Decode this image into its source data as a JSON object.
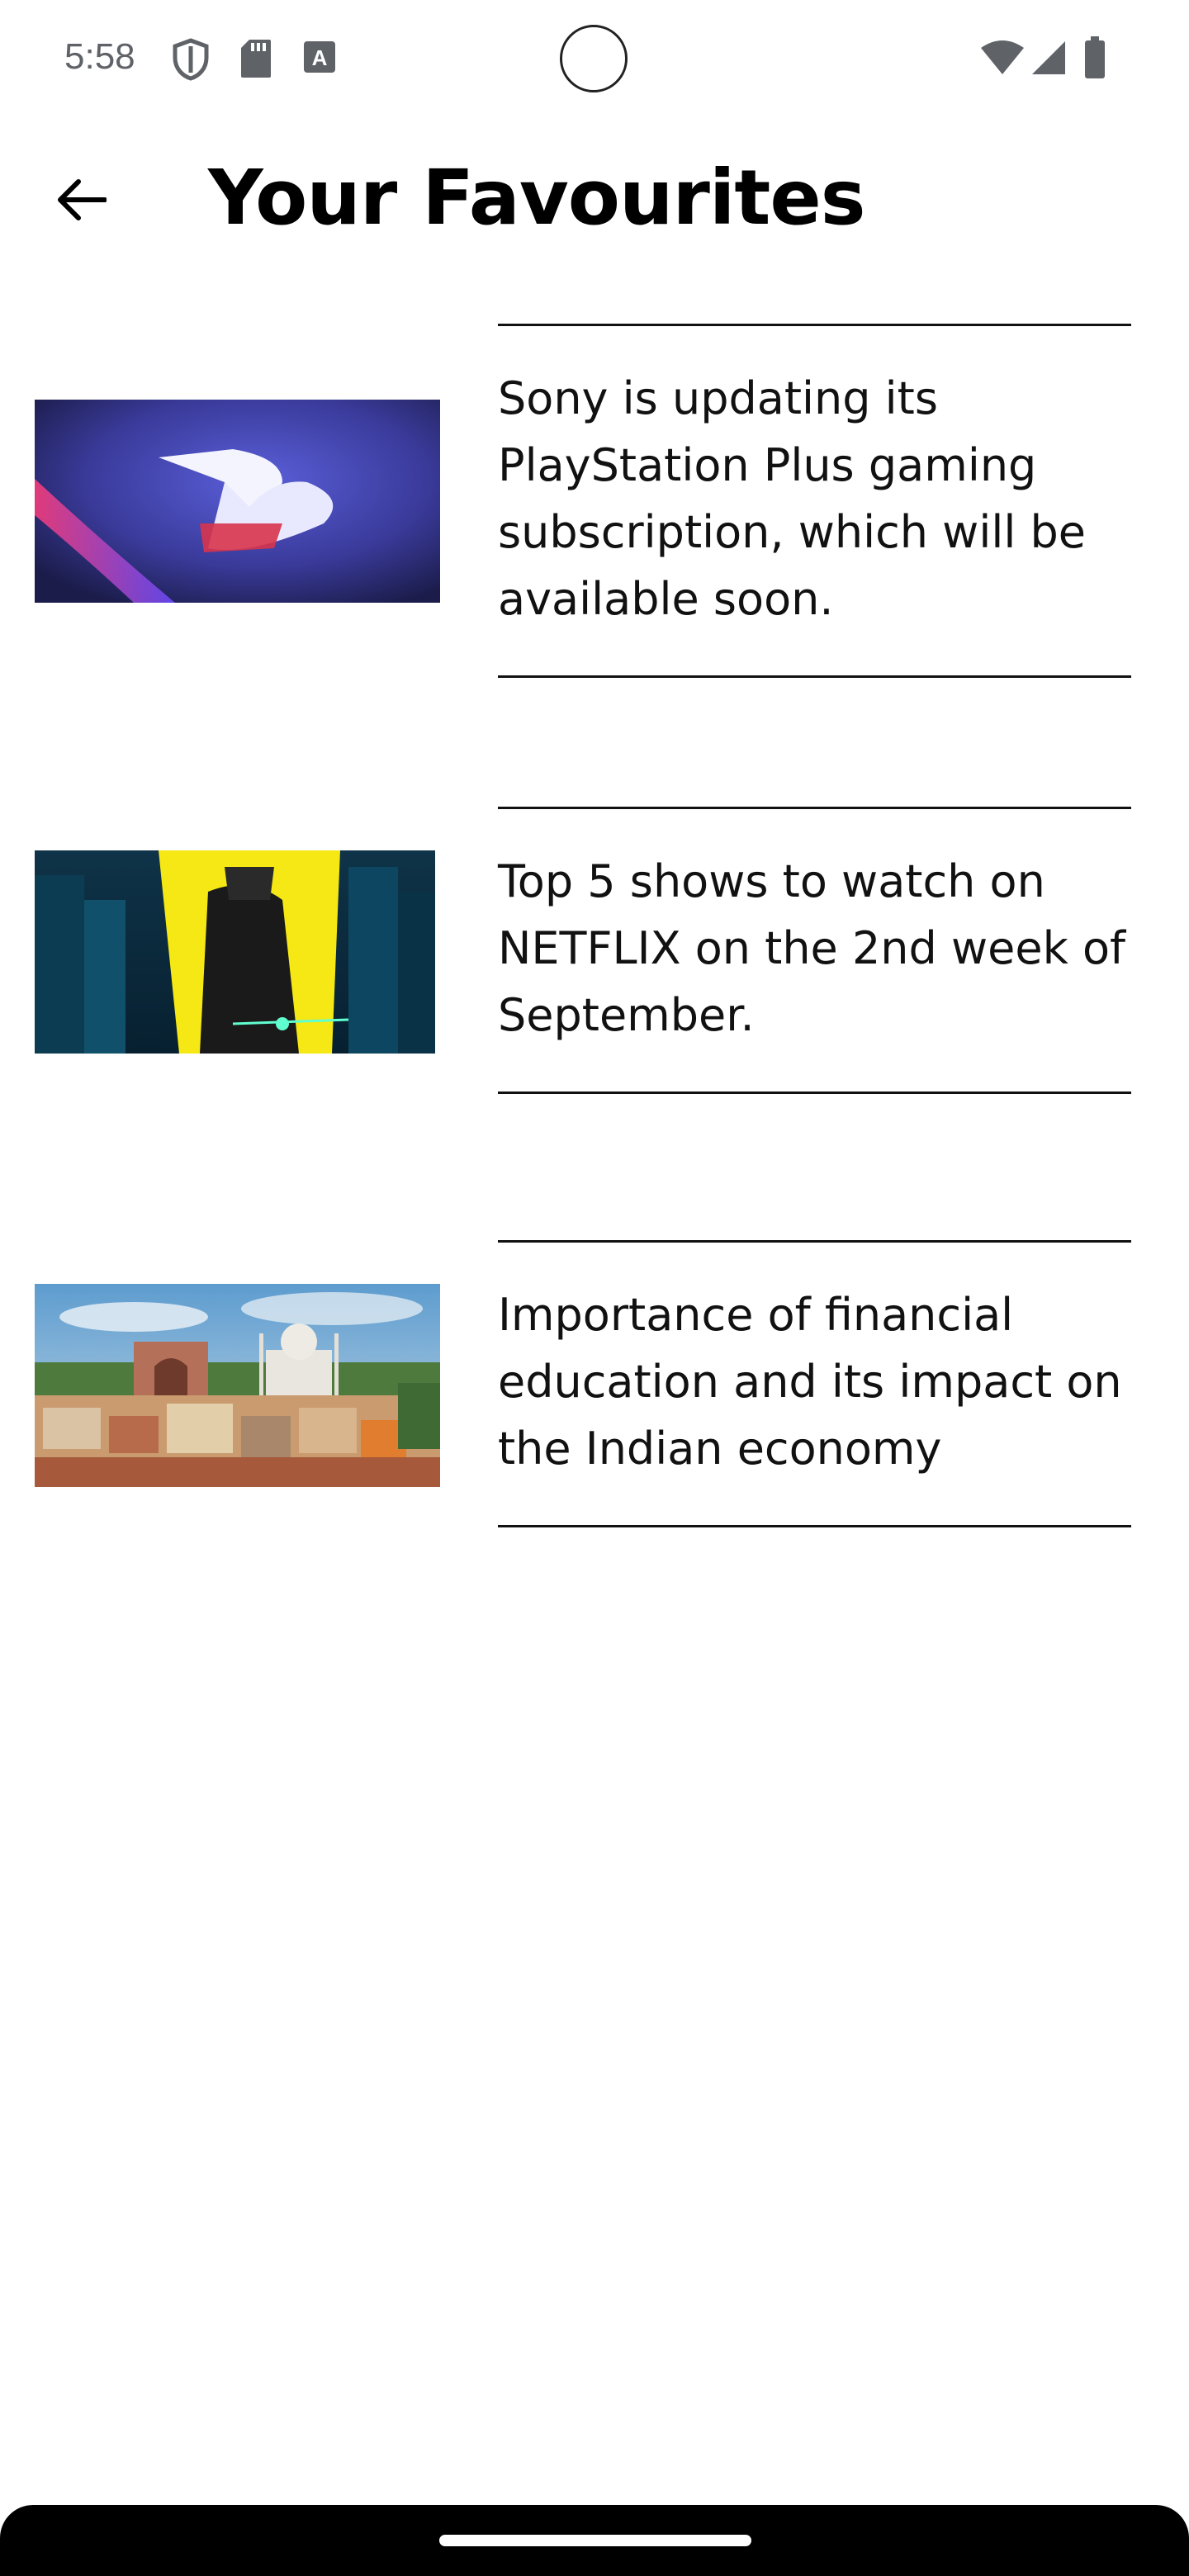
{
  "status_bar": {
    "time": "5:58",
    "icons_left": [
      "shield-icon",
      "sd-card-icon",
      "keyboard-a-icon"
    ],
    "icons_right": [
      "wifi-icon",
      "cell-signal-icon",
      "battery-icon"
    ]
  },
  "header": {
    "title": "Your Favourites",
    "back_icon": "arrow-back-icon"
  },
  "favourites": [
    {
      "text": "Sony is updating its PlayStation Plus gaming subscription, which will be available soon.",
      "image": "playstation-logo-thumbnail"
    },
    {
      "text": "Top 5 shows to watch on NETFLIX on the 2nd week of September.",
      "image": "anime-poster-thumbnail"
    },
    {
      "text": "Importance of financial education and its impact on the Indian economy",
      "image": "taj-mahal-city-thumbnail"
    }
  ],
  "colors": {
    "background": "#ffffff",
    "text": "#111111",
    "status_gray": "#5f6368",
    "nav_bar": "#000000"
  }
}
